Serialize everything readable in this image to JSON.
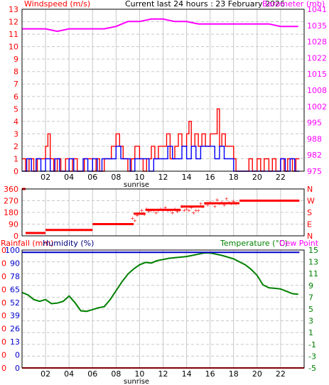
{
  "header": {
    "left_title": "Windspeed (m/s)",
    "center_title": "Current last 24 hours : 23 February 2026",
    "right_title": "Barometer (mb)"
  },
  "panel3_header": {
    "rainfall": "Rainfall (mm)",
    "humidity": "Humidity (%)",
    "temperature": "Temperature (°C)",
    "dewpoint": "Dew Point"
  },
  "colors": {
    "wind_avg": "#ff0000",
    "wind_gust": "#0000ff",
    "barometer": "#ff00ff",
    "direction": "#ff0000",
    "humidity": "#00007f",
    "temperature": "#008000",
    "rainfall": "#ff0000",
    "dewpoint": "#ff00ff",
    "grid": "#c8c8c8"
  },
  "chart_data": [
    {
      "id": "wind",
      "type": "line",
      "x_ticks": [
        "02",
        "04",
        "06",
        "08",
        "10",
        "12",
        "14",
        "16",
        "18",
        "20",
        "22"
      ],
      "x_annotation": "sunrise",
      "xlim": [
        0,
        24
      ],
      "ylim": [
        0,
        13
      ],
      "y_left_ticks": [
        "0",
        "1",
        "2",
        "3",
        "4",
        "5",
        "6",
        "7",
        "8",
        "9",
        "10",
        "11",
        "12",
        "13"
      ],
      "y_right_ticks": [
        "975",
        "982",
        "988",
        "995",
        "1002",
        "1008",
        "1015",
        "1022",
        "1028",
        "1035",
        "1041"
      ],
      "y_right_range": [
        975,
        1041
      ],
      "series": [
        {
          "key": "wind_avg",
          "step": true,
          "x": [
            0,
            0.3,
            0.6,
            1,
            1.3,
            1.6,
            2,
            2.2,
            2.4,
            2.7,
            3,
            3.3,
            3.7,
            4,
            4.3,
            4.7,
            5,
            5.3,
            5.6,
            6,
            6.3,
            6.6,
            7,
            7.3,
            7.6,
            8,
            8.3,
            8.6,
            9,
            9.3,
            9.6,
            10,
            10.3,
            10.6,
            11,
            11.3,
            11.6,
            12,
            12.3,
            12.6,
            13,
            13.3,
            13.6,
            14,
            14.2,
            14.4,
            14.7,
            15,
            15.3,
            15.6,
            16,
            16.3,
            16.6,
            16.8,
            17,
            17.3,
            17.6,
            18,
            18.2,
            18.5,
            19,
            19.3,
            19.6,
            20,
            20.3,
            20.6,
            21,
            21.3,
            21.6,
            22,
            22.3,
            22.6,
            23,
            23.3
          ],
          "y": [
            1,
            0,
            1,
            0,
            1,
            1,
            2,
            3,
            1,
            0,
            1,
            0,
            1,
            0,
            1,
            0,
            0,
            1,
            1,
            0,
            1,
            0,
            1,
            1,
            2,
            3,
            2,
            1,
            0,
            1,
            2,
            1,
            0,
            1,
            2,
            1,
            2,
            2,
            3,
            1,
            2,
            3,
            2,
            3,
            4,
            2,
            3,
            2,
            3,
            2,
            3,
            3,
            5,
            2,
            3,
            2,
            2,
            1,
            0,
            0,
            0,
            1,
            0,
            1,
            0,
            1,
            0,
            1,
            0,
            1,
            0,
            1,
            0,
            1
          ],
          "range": [
            0,
            5
          ]
        },
        {
          "key": "wind_gust",
          "step": true,
          "x": [
            0,
            0.4,
            0.8,
            1.2,
            1.6,
            2,
            2.4,
            2.8,
            3.2,
            3.6,
            4,
            4.4,
            4.8,
            5.2,
            5.6,
            6,
            6.4,
            6.8,
            7.2,
            7.6,
            8,
            8.4,
            8.8,
            9.2,
            9.6,
            10,
            10.4,
            10.8,
            11.2,
            11.6,
            12,
            12.4,
            12.8,
            13.2,
            13.6,
            14,
            14.4,
            14.8,
            15.2,
            15.6,
            16,
            16.4,
            16.8,
            17.2,
            17.6,
            18,
            18.4,
            18.8,
            19.2,
            19.6,
            20,
            20.4,
            20.8,
            21.2,
            21.6,
            22,
            22.4,
            22.8,
            23.2
          ],
          "y": [
            0,
            1,
            0,
            1,
            0,
            1,
            0,
            1,
            0,
            0,
            1,
            0,
            0,
            1,
            0,
            1,
            0,
            1,
            1,
            1,
            2,
            1,
            1,
            0,
            1,
            1,
            1,
            0,
            1,
            1,
            1,
            2,
            1,
            1,
            2,
            1,
            2,
            1,
            2,
            2,
            2,
            1,
            2,
            1,
            1,
            0,
            0,
            0,
            0,
            0,
            0,
            0,
            0,
            0,
            0,
            1,
            0,
            1,
            0
          ],
          "range": [
            0,
            2
          ]
        },
        {
          "key": "barometer",
          "axis": "right",
          "x": [
            0,
            1,
            2,
            3,
            4,
            5,
            6,
            7,
            8,
            9,
            10,
            11,
            12,
            13,
            14,
            15,
            16,
            17,
            18,
            19,
            20,
            21,
            22,
            23.5
          ],
          "y": [
            1033,
            1033,
            1033,
            1032,
            1033,
            1033,
            1033,
            1033,
            1034,
            1036,
            1036,
            1037,
            1037,
            1036,
            1036,
            1035,
            1035,
            1035,
            1035,
            1035,
            1035,
            1035,
            1034,
            1034
          ]
        }
      ]
    },
    {
      "id": "direction",
      "type": "scatter",
      "xlim": [
        0,
        24
      ],
      "ylim": [
        0,
        360
      ],
      "y_left_ticks": [
        "0",
        "90",
        "180",
        "270",
        "360"
      ],
      "y_left_values": [
        0,
        90,
        180,
        270,
        360
      ],
      "y_right_ticks": [
        "N",
        "E",
        "S",
        "W",
        "N"
      ],
      "segments": [
        {
          "x0": 0,
          "x1": 0.3,
          "y": 360
        },
        {
          "x0": 0.3,
          "x1": 2,
          "y": 22
        },
        {
          "x0": 2,
          "x1": 6,
          "y": 45
        },
        {
          "x0": 6,
          "x1": 9.5,
          "y": 90
        },
        {
          "x0": 9.5,
          "x1": 10.5,
          "y": 170
        },
        {
          "x0": 10.5,
          "x1": 13.5,
          "y": 200
        },
        {
          "x0": 13.5,
          "x1": 15.5,
          "y": 225
        },
        {
          "x0": 15.5,
          "x1": 18.5,
          "y": 250
        },
        {
          "x0": 18.5,
          "x1": 23.6,
          "y": 270
        }
      ],
      "points": {
        "x": [
          9.4,
          9.6,
          9.8,
          10,
          10.2,
          10.4,
          10.6,
          10.8,
          11,
          11.2,
          11.4,
          11.6,
          11.8,
          12,
          12.2,
          12.4,
          12.6,
          12.8,
          13,
          13.2,
          13.4,
          13.6,
          13.8,
          14,
          14.2,
          14.4,
          14.6,
          14.8,
          15,
          15.2,
          15.4,
          15.6,
          15.8,
          16,
          16.2,
          16.4,
          16.6,
          16.8,
          17,
          17.2,
          17.4,
          17.6,
          17.8,
          18,
          18.2
        ],
        "y": [
          140,
          120,
          160,
          180,
          200,
          170,
          210,
          190,
          200,
          200,
          180,
          200,
          210,
          200,
          220,
          200,
          200,
          180,
          210,
          190,
          200,
          230,
          200,
          210,
          200,
          220,
          180,
          200,
          200,
          250,
          230,
          250,
          240,
          260,
          250,
          230,
          280,
          250,
          260,
          240,
          290,
          260,
          250,
          270,
          250
        ]
      }
    },
    {
      "id": "temp_humidity",
      "type": "line",
      "x_ticks": [
        "02",
        "04",
        "06",
        "08",
        "10",
        "12",
        "14",
        "16",
        "18",
        "20",
        "22"
      ],
      "x_annotation": "sunrise",
      "xlim": [
        0,
        24
      ],
      "y_left_ticks": [
        "0",
        "0",
        "13",
        "26",
        "39",
        "52",
        "65",
        "78",
        "90",
        "100"
      ],
      "y_left_rainfall_ticks": [
        "0",
        "0",
        "0",
        "0",
        "0",
        "0",
        "0",
        "0",
        "0",
        "0"
      ],
      "y_right_ticks": [
        "-5",
        "-3",
        "-1",
        "1",
        "3",
        "5",
        "7",
        "9",
        "11",
        "13",
        "15"
      ],
      "y_right_range": [
        -5,
        15
      ],
      "series": [
        {
          "key": "temperature",
          "axis": "right",
          "x": [
            0,
            0.5,
            1,
            1.5,
            2,
            2.5,
            3,
            3.5,
            4,
            4.5,
            5,
            5.5,
            6,
            6.5,
            7,
            7.5,
            8,
            8.5,
            9,
            9.5,
            10,
            10.5,
            11,
            11.5,
            12,
            12.5,
            13,
            13.5,
            14,
            14.5,
            15,
            15.5,
            16,
            16.5,
            17,
            17.5,
            18,
            18.5,
            19,
            19.5,
            20,
            20.5,
            21,
            21.5,
            22,
            22.5,
            23,
            23.5
          ],
          "y": [
            7.8,
            7.4,
            6.6,
            6.3,
            6.6,
            5.9,
            6.0,
            6.3,
            7.2,
            6.1,
            4.7,
            4.6,
            4.9,
            5.2,
            5.4,
            6.6,
            8.1,
            9.6,
            10.9,
            11.8,
            12.5,
            12.9,
            12.8,
            13.2,
            13.4,
            13.6,
            13.7,
            13.8,
            13.9,
            14.1,
            14.3,
            14.5,
            14.5,
            14.3,
            14.1,
            13.8,
            13.5,
            13.0,
            12.5,
            11.7,
            10.7,
            9.1,
            8.6,
            8.5,
            8.4,
            8.0,
            7.6,
            7.5
          ]
        },
        {
          "key": "humidity",
          "axis": "left",
          "x": [
            0,
            23.6
          ],
          "y": [
            98,
            98
          ]
        },
        {
          "key": "rainfall",
          "axis": "left",
          "x": [
            0,
            24
          ],
          "y": [
            0,
            0
          ]
        }
      ]
    }
  ]
}
